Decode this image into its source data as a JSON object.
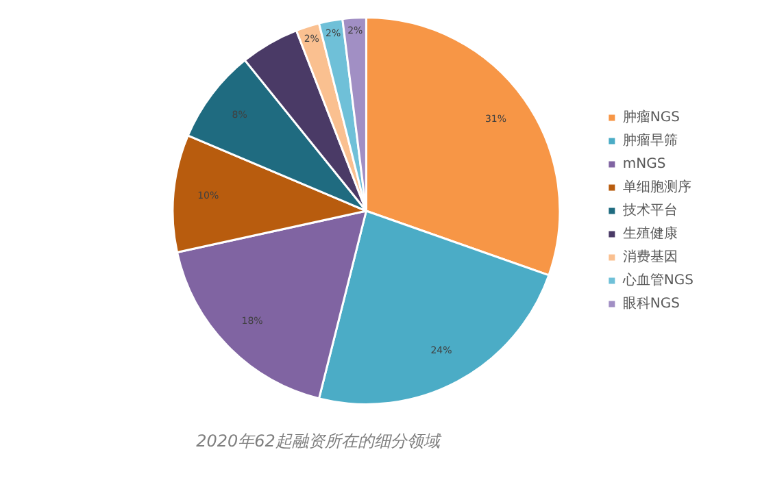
{
  "chart_data": {
    "type": "pie",
    "title": "2020年62起融资所在的细分领域",
    "categories": [
      "肿瘤NGS",
      "肿瘤早筛",
      "mNGS",
      "单细胞测序",
      "技术平台",
      "生殖健康",
      "消费基因",
      "心血管NGS",
      "眼科NGS"
    ],
    "values": [
      31,
      24,
      18,
      10,
      8,
      5,
      2,
      2,
      2
    ],
    "value_labels": [
      "31%",
      "24%",
      "18%",
      "10%",
      "8%",
      null,
      "2%",
      "2%",
      "2%"
    ],
    "colors": [
      "#f79646",
      "#4bacc6",
      "#8064a2",
      "#b85c0e",
      "#1f6b80",
      "#4a3a66",
      "#fac090",
      "#6fc0d8",
      "#a18fc4"
    ],
    "legend": "right"
  }
}
